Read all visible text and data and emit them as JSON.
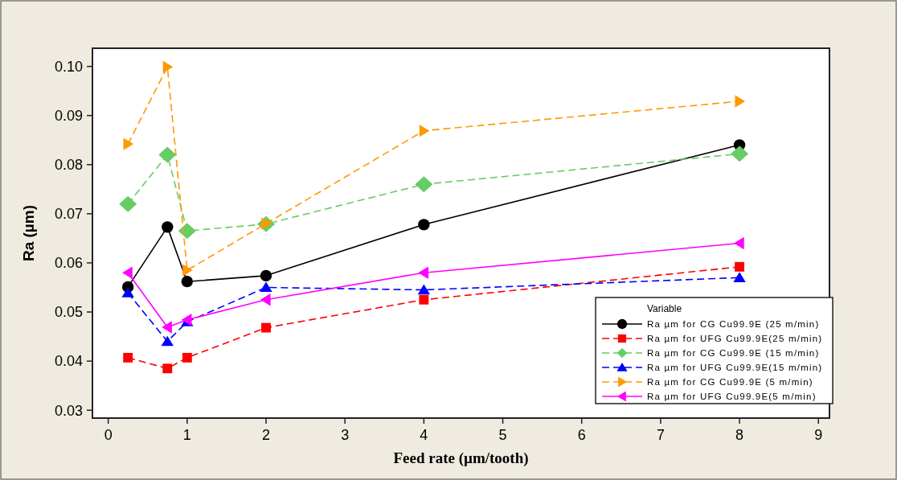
{
  "chart_data": {
    "type": "line",
    "xlabel": "Feed rate (µm/tooth)",
    "ylabel": "Ra (µm)",
    "legend_title": "Variable",
    "legend": "bottom right",
    "grid": false,
    "x": [
      0.25,
      0.75,
      1,
      2,
      4,
      8
    ],
    "xlim": [
      -0.2,
      9.14
    ],
    "xticks": [
      0,
      1,
      2,
      3,
      4,
      5,
      6,
      7,
      8,
      9
    ],
    "ylim": [
      0.0284,
      0.1037
    ],
    "yticks": [
      {
        "value": 0.03,
        "label": "0.03"
      },
      {
        "value": 0.04,
        "label": "0.04"
      },
      {
        "value": 0.05,
        "label": "0.05"
      },
      {
        "value": 0.06,
        "label": "0.06"
      },
      {
        "value": 0.07,
        "label": "0.07"
      },
      {
        "value": 0.08,
        "label": "0.08"
      },
      {
        "value": 0.09,
        "label": "0.09"
      },
      {
        "value": 0.1,
        "label": "0.10"
      }
    ],
    "series": [
      {
        "name": "Ra µm for CG Cu99.9E (25 m/min)",
        "color": "#000000",
        "marker": "circle",
        "line_style": "solid",
        "values": [
          0.0551,
          0.0673,
          0.0562,
          0.0574,
          0.0678,
          0.084
        ]
      },
      {
        "name": "Ra µm for UFG Cu99.9E(25 m/min)",
        "color": "#ff0000",
        "marker": "square",
        "line_style": "dashed",
        "values": [
          0.0407,
          0.0385,
          0.0407,
          0.0468,
          0.0525,
          0.0592
        ]
      },
      {
        "name": "Ra µm for CG Cu99.9E (15 m/min)",
        "color": "#66cc66",
        "marker": "diamond",
        "line_style": "dashed",
        "values": [
          0.072,
          0.082,
          0.0665,
          0.0679,
          0.076,
          0.0822
        ]
      },
      {
        "name": "Ra µm for UFG Cu99.9E(15 m/min)",
        "color": "#0000ff",
        "marker": "triangle",
        "line_style": "dashed",
        "values": [
          0.0539,
          0.044,
          0.048,
          0.055,
          0.0545,
          0.057
        ]
      },
      {
        "name": "Ra µm for CG Cu99.9E (5 m/min)",
        "color": "#ff9900",
        "marker": "triangle-right",
        "line_style": "dashed",
        "values": [
          0.0842,
          0.0999,
          0.0585,
          0.068,
          0.0869,
          0.0929
        ]
      },
      {
        "name": "Ra µm for UFG Cu99.9E(5 m/min)",
        "color": "#ff00ff",
        "marker": "triangle-left",
        "line_style": "solid",
        "values": [
          0.058,
          0.0469,
          0.0484,
          0.0525,
          0.058,
          0.064
        ]
      }
    ]
  }
}
